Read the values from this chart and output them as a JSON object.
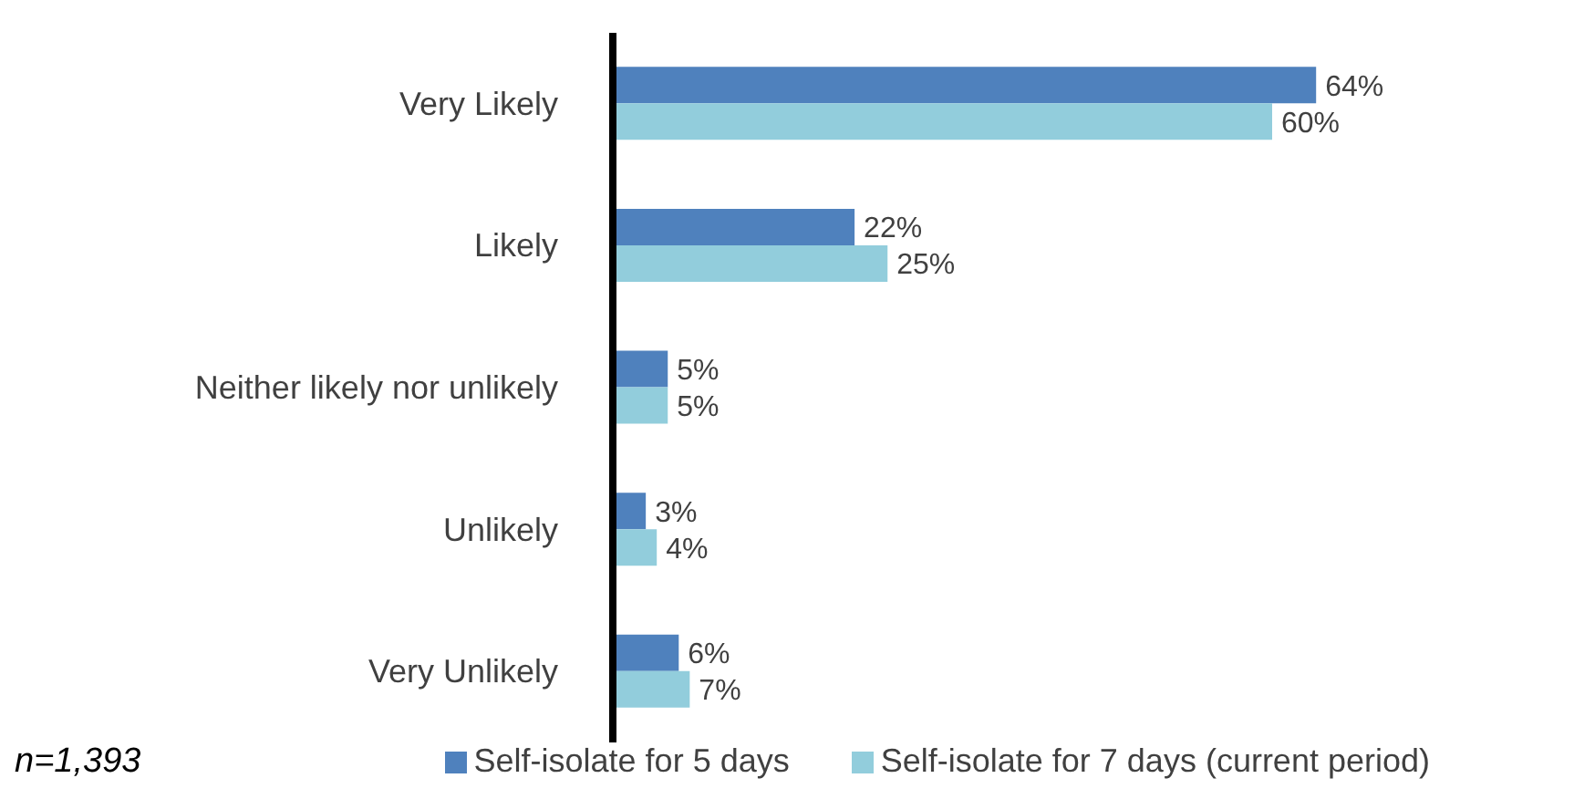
{
  "chart_data": {
    "type": "bar",
    "orientation": "horizontal",
    "categories": [
      "Very Likely",
      "Likely",
      "Neither likely nor unlikely",
      "Unlikely",
      "Very Unlikely"
    ],
    "series": [
      {
        "name": "Self-isolate for 5 days",
        "color": "#4f81bd",
        "values": [
          64,
          22,
          5,
          3,
          6
        ],
        "value_labels": [
          "64%",
          "22%",
          "5%",
          "3%",
          "6%"
        ]
      },
      {
        "name": "Self-isolate for 7 days (current period)",
        "color": "#92cddc",
        "values": [
          60,
          25,
          5,
          4,
          7
        ],
        "value_labels": [
          "60%",
          "25%",
          "5%",
          "4%",
          "7%"
        ]
      }
    ],
    "legend": "bottom",
    "tick_labels": "y",
    "annotations": [
      "n=1,393"
    ]
  }
}
